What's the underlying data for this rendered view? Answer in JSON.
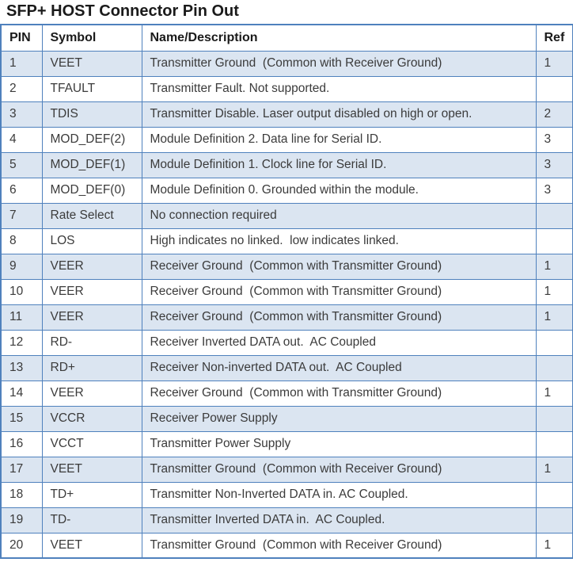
{
  "title": "SFP+ HOST Connector Pin Out",
  "colors": {
    "border": "#4f81bd",
    "row_alt": "#dbe5f1",
    "row_plain": "#ffffff",
    "text": "#3b3b3b",
    "heading": "#1a1a1a"
  },
  "table": {
    "columns": [
      "PIN",
      "Symbol",
      "Name/Description",
      "Ref"
    ],
    "rows": [
      {
        "pin": "1",
        "symbol": "VEET",
        "description": "Transmitter Ground  (Common with Receiver Ground)",
        "ref": "1"
      },
      {
        "pin": "2",
        "symbol": "TFAULT",
        "description": "Transmitter Fault. Not supported.",
        "ref": ""
      },
      {
        "pin": "3",
        "symbol": "TDIS",
        "description": "Transmitter Disable. Laser output disabled on high or open.",
        "ref": "2"
      },
      {
        "pin": "4",
        "symbol": "MOD_DEF(2)",
        "description": "Module Definition 2. Data line for Serial ID.",
        "ref": "3"
      },
      {
        "pin": "5",
        "symbol": "MOD_DEF(1)",
        "description": "Module Definition 1. Clock line for Serial ID.",
        "ref": "3"
      },
      {
        "pin": "6",
        "symbol": "MOD_DEF(0)",
        "description": "Module Definition 0. Grounded within the module.",
        "ref": "3"
      },
      {
        "pin": "7",
        "symbol": "Rate Select",
        "description": "No connection required",
        "ref": ""
      },
      {
        "pin": "8",
        "symbol": "LOS",
        "description": "High indicates no linked.  low indicates linked.",
        "ref": ""
      },
      {
        "pin": "9",
        "symbol": "VEER",
        "description": "Receiver Ground  (Common with Transmitter Ground)",
        "ref": "1"
      },
      {
        "pin": "10",
        "symbol": "VEER",
        "description": "Receiver Ground  (Common with Transmitter Ground)",
        "ref": "1"
      },
      {
        "pin": "11",
        "symbol": "VEER",
        "description": "Receiver Ground  (Common with Transmitter Ground)",
        "ref": "1"
      },
      {
        "pin": "12",
        "symbol": "RD-",
        "description": "Receiver Inverted DATA out.  AC Coupled",
        "ref": ""
      },
      {
        "pin": "13",
        "symbol": "RD+",
        "description": "Receiver Non-inverted DATA out.  AC Coupled",
        "ref": ""
      },
      {
        "pin": "14",
        "symbol": "VEER",
        "description": "Receiver Ground  (Common with Transmitter Ground)",
        "ref": "1"
      },
      {
        "pin": "15",
        "symbol": "VCCR",
        "description": "Receiver Power Supply",
        "ref": ""
      },
      {
        "pin": "16",
        "symbol": "VCCT",
        "description": "Transmitter Power Supply",
        "ref": ""
      },
      {
        "pin": "17",
        "symbol": "VEET",
        "description": "Transmitter Ground  (Common with Receiver Ground)",
        "ref": "1"
      },
      {
        "pin": "18",
        "symbol": "TD+",
        "description": "Transmitter Non-Inverted DATA in. AC Coupled.",
        "ref": ""
      },
      {
        "pin": "19",
        "symbol": "TD-",
        "description": "Transmitter Inverted DATA in.  AC Coupled.",
        "ref": ""
      },
      {
        "pin": "20",
        "symbol": "VEET",
        "description": "Transmitter Ground  (Common with Receiver Ground)",
        "ref": "1"
      }
    ]
  }
}
